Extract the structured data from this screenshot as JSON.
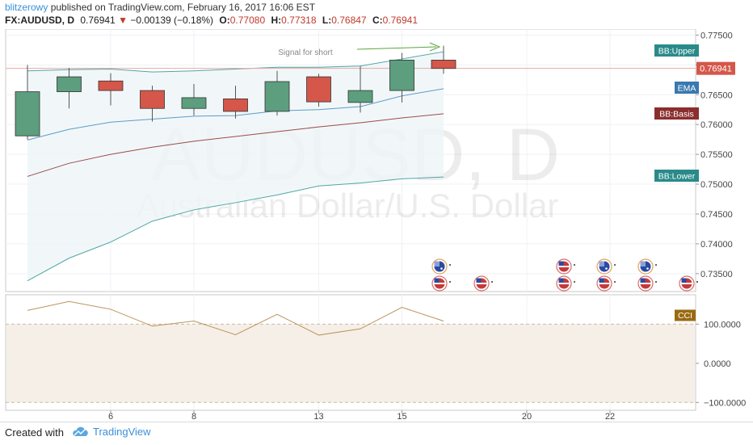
{
  "header": {
    "author": "blitzerowy",
    "published_text": "published on TradingView.com, February 16, 2017 16:06 EST",
    "symbol": "FX:AUDUSD, D",
    "last": "0.76941",
    "change": "−0.00139 (−0.18%)",
    "o_label": "O:",
    "o_value": "0.77080",
    "h_label": "H:",
    "h_value": "0.77318",
    "l_label": "L:",
    "l_value": "0.76847",
    "c_label": "C:",
    "c_value": "0.76941"
  },
  "footer": {
    "created_with": "Created with",
    "brand": "TradingView"
  },
  "colors": {
    "up": "#5c9e7e",
    "down": "#d4574a",
    "bb_band": "#4fa6a6",
    "bb_basis": "#9b4b4b",
    "ema": "#5e9bc9",
    "cci_line": "#b8955c",
    "bb_fill": "#eef6f7",
    "cci_fill": "#f6efe7",
    "annotation": "#5aa540",
    "price_line": "#e8a8a0"
  },
  "chart_data": [
    {
      "type": "candlestick",
      "title": "",
      "watermark_symbol": "AUDUSD, D",
      "watermark_name": "Australian Dollar/U.S. Dollar",
      "x_ticks": [
        6,
        8,
        13,
        15,
        20,
        22
      ],
      "y_ticks": [
        "0.77500",
        "0.77000",
        "0.76500",
        "0.76000",
        "0.75500",
        "0.75000",
        "0.74500",
        "0.74000",
        "0.73500"
      ],
      "ylim": [
        0.732,
        0.776
      ],
      "candles": [
        {
          "o": 0.7581,
          "h": 0.77,
          "l": 0.7575,
          "c": 0.7655
        },
        {
          "o": 0.7655,
          "h": 0.7695,
          "l": 0.7627,
          "c": 0.768
        },
        {
          "o": 0.7673,
          "h": 0.7686,
          "l": 0.7632,
          "c": 0.7657
        },
        {
          "o": 0.7657,
          "h": 0.7665,
          "l": 0.7605,
          "c": 0.7627
        },
        {
          "o": 0.7627,
          "h": 0.7668,
          "l": 0.7615,
          "c": 0.7645
        },
        {
          "o": 0.7643,
          "h": 0.7665,
          "l": 0.761,
          "c": 0.7622
        },
        {
          "o": 0.7622,
          "h": 0.769,
          "l": 0.7615,
          "c": 0.7672
        },
        {
          "o": 0.768,
          "h": 0.7685,
          "l": 0.763,
          "c": 0.7638
        },
        {
          "o": 0.7637,
          "h": 0.7698,
          "l": 0.762,
          "c": 0.7657
        },
        {
          "o": 0.7657,
          "h": 0.772,
          "l": 0.7637,
          "c": 0.7708
        },
        {
          "o": 0.7708,
          "h": 0.7732,
          "l": 0.7685,
          "c": 0.7694
        }
      ],
      "bb_upper": [
        0.769,
        0.7692,
        0.7693,
        0.7688,
        0.769,
        0.7693,
        0.7696,
        0.7696,
        0.7698,
        0.771,
        0.7722
      ],
      "bb_basis": [
        0.7513,
        0.7535,
        0.755,
        0.7562,
        0.7572,
        0.758,
        0.7588,
        0.7596,
        0.7603,
        0.7611,
        0.7618
      ],
      "bb_lower": [
        0.7338,
        0.7376,
        0.7403,
        0.7438,
        0.7457,
        0.7469,
        0.7482,
        0.7497,
        0.7502,
        0.7509,
        0.7512
      ],
      "ema": [
        0.7574,
        0.7592,
        0.7604,
        0.7609,
        0.7614,
        0.7615,
        0.7623,
        0.7625,
        0.763,
        0.7648,
        0.766
      ],
      "price_line_value": 0.76941,
      "annotation": "Signal for short",
      "labels": {
        "bb_upper": "BB:Upper",
        "price": "0.76941",
        "ema": "EMA",
        "bb_basis": "BB:Basis",
        "bb_lower": "BB:Lower"
      },
      "events_row1": [
        "AU",
        "US",
        "AU",
        "AU"
      ],
      "events_row2": [
        "US",
        "US",
        "US",
        "US",
        "US",
        "US"
      ],
      "event_flags": [
        "AU",
        "US"
      ]
    },
    {
      "type": "line",
      "title": "",
      "series_label": "CCI",
      "y_ticks": [
        "100.0000",
        "0.0000",
        "−100.0000"
      ],
      "ylim": [
        -120,
        175
      ],
      "levels": [
        100,
        -100
      ],
      "values": [
        135,
        158,
        138,
        95,
        108,
        73,
        125,
        72,
        88,
        143,
        108
      ]
    }
  ]
}
